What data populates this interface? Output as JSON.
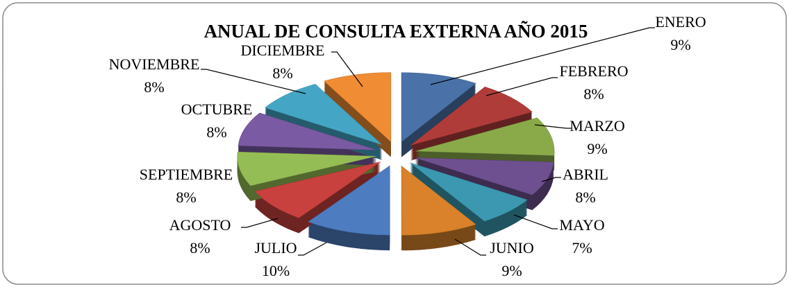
{
  "chart_data": {
    "type": "pie",
    "title": "ANUAL  DE CONSULTA EXTERNA  AÑO 2015",
    "categories": [
      "ENERO",
      "FEBRERO",
      "MARZO",
      "ABRIL",
      "MAYO",
      "JUNIO",
      "JULIO",
      "AGOSTO",
      "SEPTIEMBRE",
      "OCTUBRE",
      "NOVIEMBRE",
      "DICIEMBRE"
    ],
    "values": [
      9,
      8,
      9,
      8,
      7,
      9,
      10,
      8,
      8,
      8,
      8,
      8
    ],
    "value_labels": [
      "9%",
      "8%",
      "9%",
      "8%",
      "7%",
      "9%",
      "10%",
      "8%",
      "8%",
      "8%",
      "8%",
      "8%"
    ],
    "colors": [
      "#4a72a8",
      "#b03c3a",
      "#8aaa4a",
      "#6e5090",
      "#3b98b0",
      "#d9822b",
      "#4d7cc0",
      "#c8413e",
      "#95bd55",
      "#7a5aa3",
      "#44a6c4",
      "#f08c33"
    ]
  }
}
